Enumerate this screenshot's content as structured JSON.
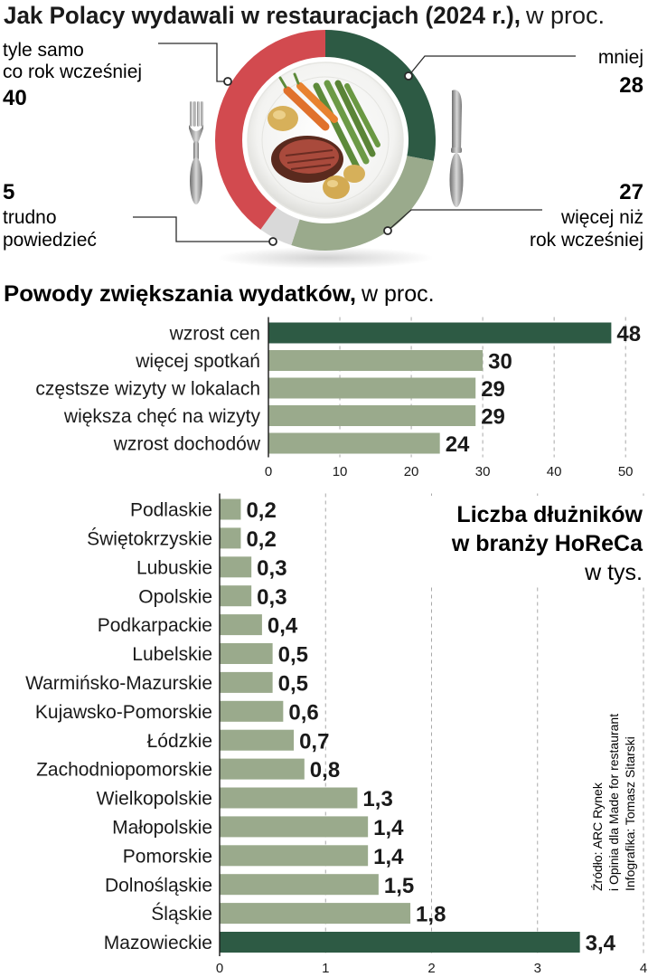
{
  "colors": {
    "dark_green": "#2d5a44",
    "sage": "#9aaa8c",
    "red": "#d24a4f",
    "light_gray": "#d9d9d9",
    "text": "#1a1a1a",
    "grid": "#a8a8a8"
  },
  "icons": [
    "fork-icon",
    "knife-icon",
    "plate-with-steak-image"
  ],
  "chart_data": [
    {
      "type": "pie",
      "title": "Jak Polacy wydawali w restauracjach (2024 r.),",
      "unit": "w proc.",
      "slices": [
        {
          "label_line1": "mniej",
          "label_line2": "",
          "value": 28,
          "color": "#2d5a44"
        },
        {
          "label_line1": "więcej niż",
          "label_line2": "rok wcześniej",
          "value": 27,
          "color": "#9aaa8c"
        },
        {
          "label_line1": "trudno",
          "label_line2": "powiedzieć",
          "value": 5,
          "color": "#d9d9d9"
        },
        {
          "label_line1": "tyle samo",
          "label_line2": "co rok wcześniej",
          "value": 40,
          "color": "#d24a4f"
        }
      ]
    },
    {
      "type": "bar",
      "orientation": "horizontal",
      "title": "Powody zwiększania wydatków,",
      "unit": "w proc.",
      "categories": [
        "wzrost cen",
        "więcej spotkań",
        "częstsze wizyty w lokalach",
        "większa chęć na wizyty",
        "wzrost dochodów"
      ],
      "values": [
        48,
        30,
        29,
        29,
        24
      ],
      "value_labels": [
        "48",
        "30",
        "29",
        "29",
        "24"
      ],
      "highlight_index": 0,
      "xlim": [
        0,
        52
      ],
      "ticks": [
        0,
        10,
        20,
        30,
        40,
        50
      ],
      "tick_labels": [
        "0",
        "10",
        "20",
        "30",
        "40",
        "50"
      ],
      "grid": true
    },
    {
      "type": "bar",
      "orientation": "horizontal",
      "title_line1": "Liczba dłużników",
      "title_line2": "w branży HoReCa",
      "unit": "w tys.",
      "categories": [
        "Podlaskie",
        "Świętokrzyskie",
        "Lubuskie",
        "Opolskie",
        "Podkarpackie",
        "Lubelskie",
        "Warmińsko-Mazurskie",
        "Kujawsko-Pomorskie",
        "Łódzkie",
        "Zachodniopomorskie",
        "Wielkopolskie",
        "Małopolskie",
        "Pomorskie",
        "Dolnośląskie",
        "Śląskie",
        "Mazowieckie"
      ],
      "values": [
        0.2,
        0.2,
        0.3,
        0.3,
        0.4,
        0.5,
        0.5,
        0.6,
        0.7,
        0.8,
        1.3,
        1.4,
        1.4,
        1.5,
        1.8,
        3.4
      ],
      "value_labels": [
        "0,2",
        "0,2",
        "0,3",
        "0,3",
        "0,4",
        "0,5",
        "0,5",
        "0,6",
        "0,7",
        "0,8",
        "1,3",
        "1,4",
        "1,4",
        "1,5",
        "1,8",
        "3,4"
      ],
      "highlight_index": 15,
      "xlim": [
        0,
        4
      ],
      "ticks": [
        0,
        1,
        2,
        3,
        4
      ],
      "tick_labels": [
        "0",
        "1",
        "2",
        "3",
        "4"
      ],
      "grid": true
    }
  ],
  "credits": {
    "line1": "Źródło: ARC Rynek",
    "line2": "i Opinia dla Made for restaurant",
    "line3": "Infografika: Tomasz Sitarski"
  }
}
